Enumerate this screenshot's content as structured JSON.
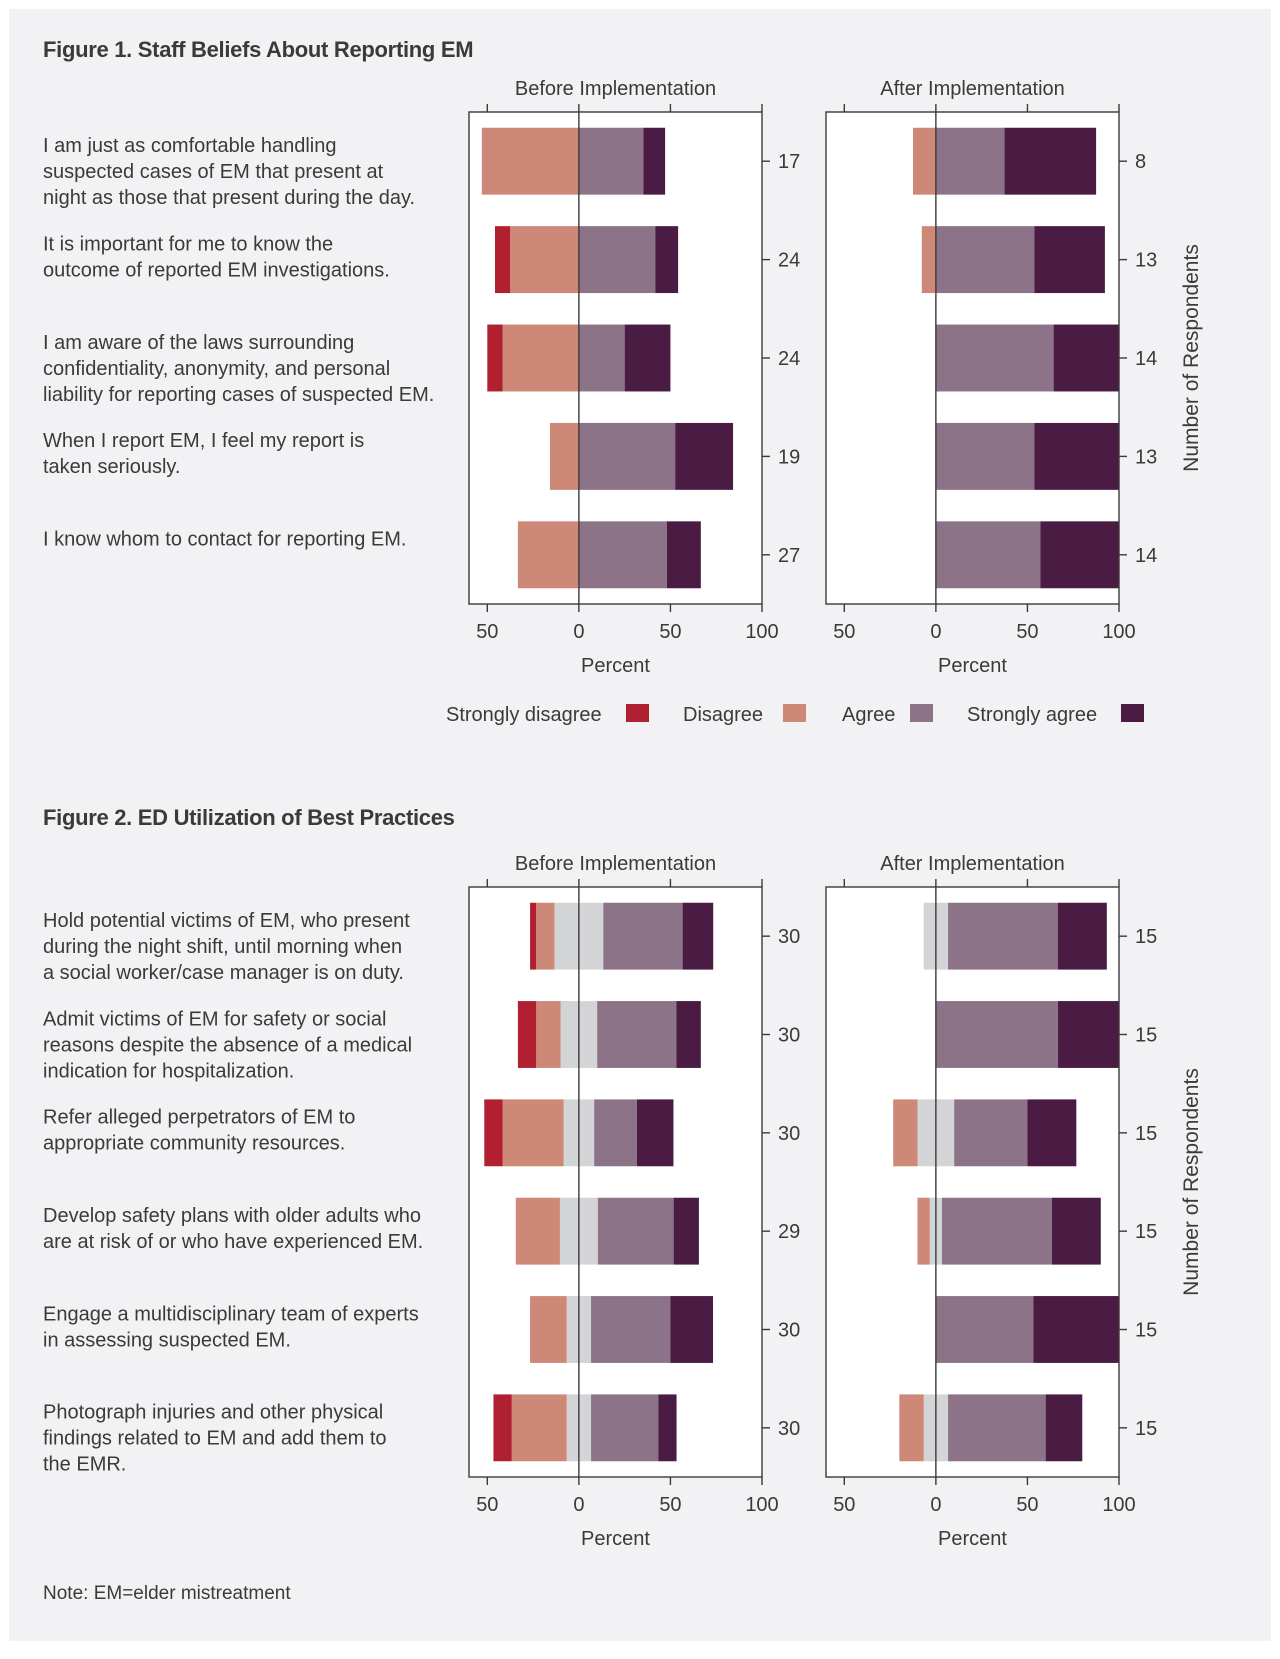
{
  "legend": [
    {
      "label": "Strongly disagree",
      "color": "#b02030"
    },
    {
      "label": "Disagree",
      "color": "#ce8878"
    },
    {
      "label": "Agree",
      "color": "#8c7388"
    },
    {
      "label": "Strongly agree",
      "color": "#4a1c44"
    }
  ],
  "colors": {
    "strongly_disagree": "#b02030",
    "disagree": "#ce8878",
    "neutral": "#d3d4d6",
    "agree": "#8c7388",
    "strongly_agree": "#4a1c44"
  },
  "note": "Note: EM=elder mistreatment",
  "chart_data": [
    {
      "type": "bar",
      "title": "Figure 1.  Staff Beliefs About Reporting EM",
      "panels": [
        "Before Implementation",
        "After Implementation"
      ],
      "xlabel": "Percent",
      "ylabel_right": "Number of Respondents",
      "xlim": [
        -60,
        100
      ],
      "xticks": [
        -50,
        0,
        50,
        100
      ],
      "xtick_labels": [
        "50",
        "0",
        "50",
        "100"
      ],
      "show_legend": true,
      "categories": [
        [
          "I am just as comfortable handling",
          "suspected cases of EM that present at",
          "night as those that present during the day."
        ],
        [
          "It is important for me to know the",
          "outcome of reported EM investigations."
        ],
        [
          "I am aware of the laws surrounding",
          "confidentiality, anonymity, and personal",
          "liability for reporting cases of suspected EM."
        ],
        [
          "When I report EM, I feel my report is",
          "taken seriously."
        ],
        [
          "I know whom to contact for reporting EM."
        ]
      ],
      "before": {
        "respondents": [
          "17",
          "24",
          "24",
          "19",
          "27"
        ],
        "series": [
          {
            "name": "Strongly disagree",
            "values": [
              0,
              8.3,
              8.3,
              0,
              0
            ]
          },
          {
            "name": "Disagree",
            "values": [
              53,
              37.5,
              41.7,
              15.8,
              33.3
            ]
          },
          {
            "name": "Neutral",
            "values": [
              0,
              0,
              0,
              0,
              0
            ]
          },
          {
            "name": "Agree",
            "values": [
              35.3,
              41.7,
              25,
              52.6,
              48.1
            ]
          },
          {
            "name": "Strongly agree",
            "values": [
              11.8,
              12.5,
              25,
              31.6,
              18.5
            ]
          }
        ]
      },
      "after": {
        "respondents": [
          "8",
          "13",
          "14",
          "13",
          "14"
        ],
        "series": [
          {
            "name": "Strongly disagree",
            "values": [
              0,
              0,
              0,
              0,
              0
            ]
          },
          {
            "name": "Disagree",
            "values": [
              12.5,
              7.7,
              0,
              0,
              0
            ]
          },
          {
            "name": "Neutral",
            "values": [
              0,
              0,
              0,
              0,
              0
            ]
          },
          {
            "name": "Agree",
            "values": [
              37.5,
              53.8,
              64.3,
              53.8,
              57.1
            ]
          },
          {
            "name": "Strongly agree",
            "values": [
              50,
              38.5,
              35.7,
              46.2,
              42.9
            ]
          }
        ]
      }
    },
    {
      "type": "bar",
      "title": "Figure 2.  ED Utilization of Best Practices",
      "panels": [
        "Before Implementation",
        "After Implementation"
      ],
      "xlabel": "Percent",
      "ylabel_right": "Number of Respondents",
      "xlim": [
        -60,
        100
      ],
      "xticks": [
        -50,
        0,
        50,
        100
      ],
      "xtick_labels": [
        "50",
        "0",
        "50",
        "100"
      ],
      "show_legend": false,
      "categories": [
        [
          "Hold potential victims of EM, who present",
          "during the night shift, until morning when",
          "a social worker/case manager is on duty."
        ],
        [
          "Admit victims of EM for safety or social",
          "reasons despite the absence of a medical",
          "indication for hospitalization."
        ],
        [
          "Refer alleged perpetrators of EM to",
          "appropriate community resources."
        ],
        [
          "Develop safety plans with older adults who",
          "are at risk of or who have experienced EM."
        ],
        [
          "Engage a multidisciplinary team of experts",
          "in assessing suspected EM."
        ],
        [
          "Photograph injuries and other physical",
          "findings related to EM and add them to",
          "the EMR."
        ]
      ],
      "before": {
        "respondents": [
          "30",
          "30",
          "30",
          "29",
          "30",
          "30"
        ],
        "series": [
          {
            "name": "Strongly disagree",
            "values": [
              3.3,
              10,
              10,
              0,
              0,
              10
            ]
          },
          {
            "name": "Disagree",
            "values": [
              10,
              13.3,
              33.3,
              24.1,
              20,
              30
            ]
          },
          {
            "name": "Neutral",
            "values": [
              26.7,
              20,
              16.7,
              20.7,
              13.3,
              13.3
            ]
          },
          {
            "name": "Agree",
            "values": [
              43.3,
              43.3,
              23.3,
              41.4,
              43.3,
              36.7
            ]
          },
          {
            "name": "Strongly agree",
            "values": [
              16.7,
              13.3,
              20,
              13.8,
              23.3,
              10
            ]
          }
        ]
      },
      "after": {
        "respondents": [
          "15",
          "15",
          "15",
          "15",
          "15",
          "15"
        ],
        "series": [
          {
            "name": "Strongly disagree",
            "values": [
              0,
              0,
              0,
              0,
              0,
              0
            ]
          },
          {
            "name": "Disagree",
            "values": [
              0,
              0,
              13.3,
              6.7,
              0,
              13.3
            ]
          },
          {
            "name": "Neutral",
            "values": [
              13.3,
              0,
              20,
              6.7,
              0,
              13.3
            ]
          },
          {
            "name": "Agree",
            "values": [
              60,
              66.7,
              40,
              60,
              53.3,
              53.3
            ]
          },
          {
            "name": "Strongly agree",
            "values": [
              26.7,
              33.3,
              26.7,
              26.7,
              46.7,
              20
            ]
          }
        ]
      }
    }
  ]
}
